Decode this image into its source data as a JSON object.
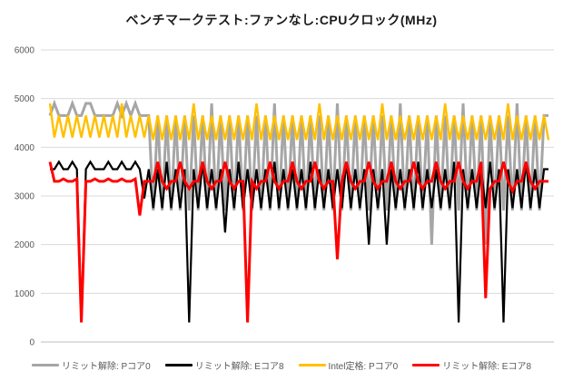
{
  "chart_data": {
    "type": "line",
    "title": "ベンチマークテスト:ファンなし:CPUクロック(MHz)",
    "xlabel": "",
    "ylabel": "",
    "ylim": [
      0,
      6000
    ],
    "yticks": [
      0,
      1000,
      2000,
      3000,
      4000,
      5000,
      6000
    ],
    "grid": true,
    "legend_position": "bottom",
    "x": "sample index (time, no axis labels shown)",
    "series": [
      {
        "name": "リミット解除: Pコア0",
        "color": "#a6a6a6",
        "width": 3,
        "values": [
          4650,
          4900,
          4650,
          4650,
          4650,
          4900,
          4650,
          4650,
          4900,
          4900,
          4650,
          4650,
          4650,
          4650,
          4650,
          4900,
          4650,
          4900,
          4650,
          4900,
          4650,
          4650,
          4650,
          2700,
          4650,
          2700,
          4650,
          2700,
          4650,
          2700,
          4650,
          2700,
          4650,
          2700,
          4650,
          2700,
          4900,
          2700,
          4650,
          2700,
          4650,
          2700,
          4650,
          2700,
          4650,
          2700,
          4650,
          2700,
          4650,
          2700,
          4900,
          2700,
          4650,
          2700,
          4650,
          2700,
          4650,
          2700,
          4650,
          2700,
          4650,
          2700,
          4650,
          2700,
          4900,
          2700,
          4650,
          2700,
          4650,
          2700,
          4650,
          2700,
          4650,
          2700,
          4650,
          2700,
          4650,
          2700,
          4900,
          2700,
          4650,
          2700,
          4650,
          2700,
          4650,
          2000,
          4650,
          2700,
          4650,
          2700,
          4650,
          2700,
          4900,
          2700,
          4650,
          2700,
          4650,
          2000,
          4650,
          2700,
          4650,
          2700,
          4650,
          2700,
          4900,
          2700,
          4650,
          2700,
          4650,
          2700,
          4650,
          4650
        ]
      },
      {
        "name": "リミット解除: Eコア8",
        "color": "#000000",
        "width": 2.2,
        "values": [
          3550,
          3550,
          3700,
          3550,
          3550,
          3700,
          3550,
          400,
          3550,
          3700,
          3550,
          3550,
          3550,
          3700,
          3550,
          3550,
          3700,
          3550,
          3550,
          3700,
          3550,
          2950,
          3550,
          2750,
          3550,
          2750,
          3700,
          2750,
          3550,
          2750,
          3550,
          400,
          3550,
          2750,
          3700,
          2750,
          3550,
          2750,
          3550,
          2250,
          3550,
          2750,
          3700,
          2750,
          3550,
          2750,
          3550,
          2750,
          3550,
          2750,
          3700,
          2750,
          3550,
          2750,
          3550,
          2750,
          3550,
          2750,
          3700,
          2750,
          3550,
          2750,
          3550,
          2750,
          3550,
          2750,
          3700,
          2750,
          3550,
          2750,
          3550,
          2000,
          3550,
          2750,
          3550,
          2000,
          3550,
          2750,
          3550,
          2750,
          3550,
          2750,
          3700,
          2750,
          3550,
          2750,
          3550,
          2750,
          3550,
          2750,
          3700,
          400,
          3550,
          2750,
          3550,
          2750,
          3550,
          2750,
          3700,
          2750,
          3550,
          400,
          3550,
          2750,
          3550,
          2750,
          3700,
          2750,
          3550,
          2750,
          3550,
          3550
        ]
      },
      {
        "name": "Intel定格: Pコア0",
        "color": "#ffc000",
        "width": 2.4,
        "values": [
          4900,
          4200,
          4650,
          4200,
          4650,
          4200,
          4650,
          4200,
          4650,
          4200,
          4650,
          4200,
          4650,
          4200,
          4650,
          4200,
          4900,
          4200,
          4650,
          4200,
          4650,
          4200,
          4650,
          4150,
          4650,
          4150,
          4650,
          4150,
          4650,
          4150,
          4650,
          4150,
          4900,
          4150,
          4650,
          4150,
          4650,
          4150,
          4650,
          4150,
          4650,
          4150,
          4650,
          4150,
          4650,
          4150,
          4900,
          4150,
          4650,
          4150,
          4650,
          4150,
          4650,
          4150,
          4650,
          4150,
          4650,
          4150,
          4650,
          4150,
          4900,
          4150,
          4650,
          4150,
          4650,
          4150,
          4650,
          4150,
          4650,
          4150,
          4650,
          4150,
          4650,
          4150,
          4900,
          4150,
          4650,
          4150,
          4650,
          4150,
          4650,
          4150,
          4650,
          4150,
          4650,
          4150,
          4650,
          4150,
          4900,
          4150,
          4650,
          4150,
          4650,
          4150,
          4650,
          4150,
          4650,
          4150,
          4650,
          4150,
          4650,
          4150,
          4900,
          4150,
          4650,
          4150,
          4650,
          4150,
          4650,
          4150,
          4650,
          4150
        ]
      },
      {
        "name": "リミット解除: Eコア8",
        "color": "#ff0000",
        "width": 3,
        "values": [
          3700,
          3300,
          3300,
          3350,
          3300,
          3300,
          3350,
          400,
          3300,
          3300,
          3350,
          3300,
          3300,
          3350,
          3300,
          3300,
          3350,
          3300,
          3300,
          3350,
          2600,
          3300,
          3300,
          3300,
          3700,
          3300,
          3150,
          3300,
          3300,
          3700,
          3300,
          3150,
          3300,
          3300,
          3700,
          3300,
          3150,
          3300,
          3300,
          3700,
          3300,
          3150,
          3300,
          3300,
          400,
          3300,
          3150,
          3300,
          3300,
          3700,
          3300,
          3150,
          3300,
          3300,
          3700,
          3300,
          3150,
          3300,
          3300,
          3700,
          3300,
          3150,
          3300,
          3300,
          1700,
          3300,
          3700,
          3300,
          3150,
          3300,
          3300,
          3700,
          3300,
          3150,
          3300,
          3300,
          3700,
          3300,
          3150,
          3300,
          3300,
          3700,
          3300,
          3150,
          3300,
          3300,
          3700,
          3300,
          3150,
          3300,
          3300,
          3700,
          3300,
          3150,
          3300,
          3300,
          3700,
          900,
          3150,
          3300,
          3300,
          3700,
          3300,
          3100,
          3300,
          3300,
          3700,
          3300,
          3150,
          3300,
          3300,
          3300
        ]
      }
    ]
  },
  "axis": {
    "label_color": "#595959",
    "gridline_color": "#d9d9d9",
    "baseline_color": "#bfbfbf"
  }
}
